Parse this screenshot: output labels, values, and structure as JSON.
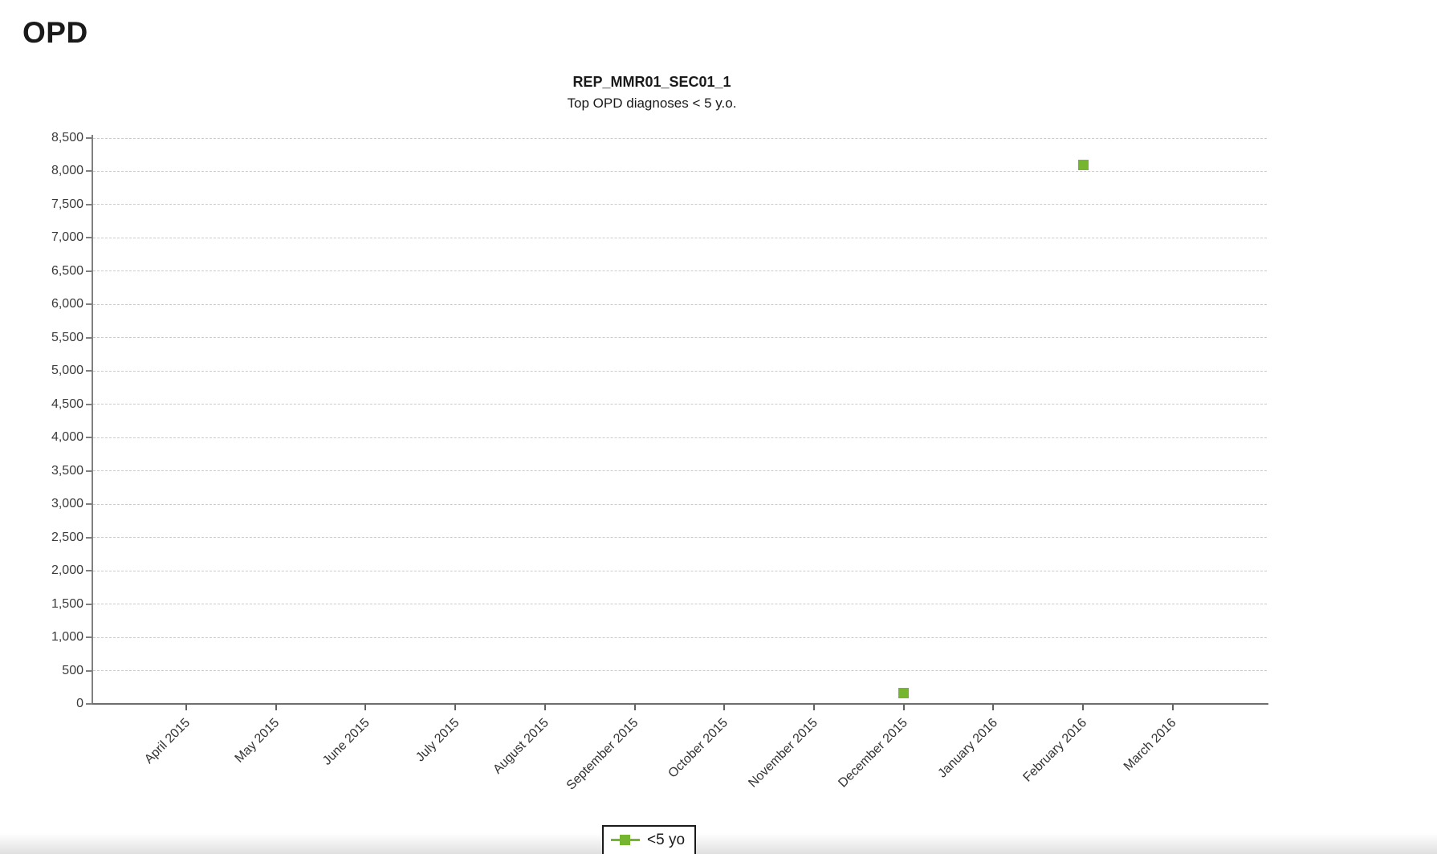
{
  "page": {
    "heading": "OPD",
    "background_color": "#ffffff"
  },
  "chart": {
    "title": "REP_MMR01_SEC01_1",
    "subtitle": "Top OPD diagnoses < 5 y.o.",
    "legend": {
      "label": "<5 yo",
      "marker_color": "#76b52f"
    }
  },
  "chart_data": {
    "type": "scatter",
    "title": "REP_MMR01_SEC01_1",
    "subtitle": "Top OPD diagnoses < 5 y.o.",
    "categories": [
      "April 2015",
      "May 2015",
      "June 2015",
      "July 2015",
      "August 2015",
      "September 2015",
      "October 2015",
      "November 2015",
      "December 2015",
      "January 2016",
      "February 2016",
      "March 2016"
    ],
    "series": [
      {
        "name": "<5 yo",
        "color": "#76b52f",
        "marker": "square",
        "points": [
          {
            "category": "December 2015",
            "value": 160
          },
          {
            "category": "February 2016",
            "value": 8100
          }
        ]
      }
    ],
    "ylim": [
      0,
      8500
    ],
    "ytick_step": 500,
    "ytick_label_format": "thousands-comma",
    "grid": "horizontal-dashed",
    "gridline_color": "#cbcbcb",
    "legend_position": "bottom-center"
  }
}
